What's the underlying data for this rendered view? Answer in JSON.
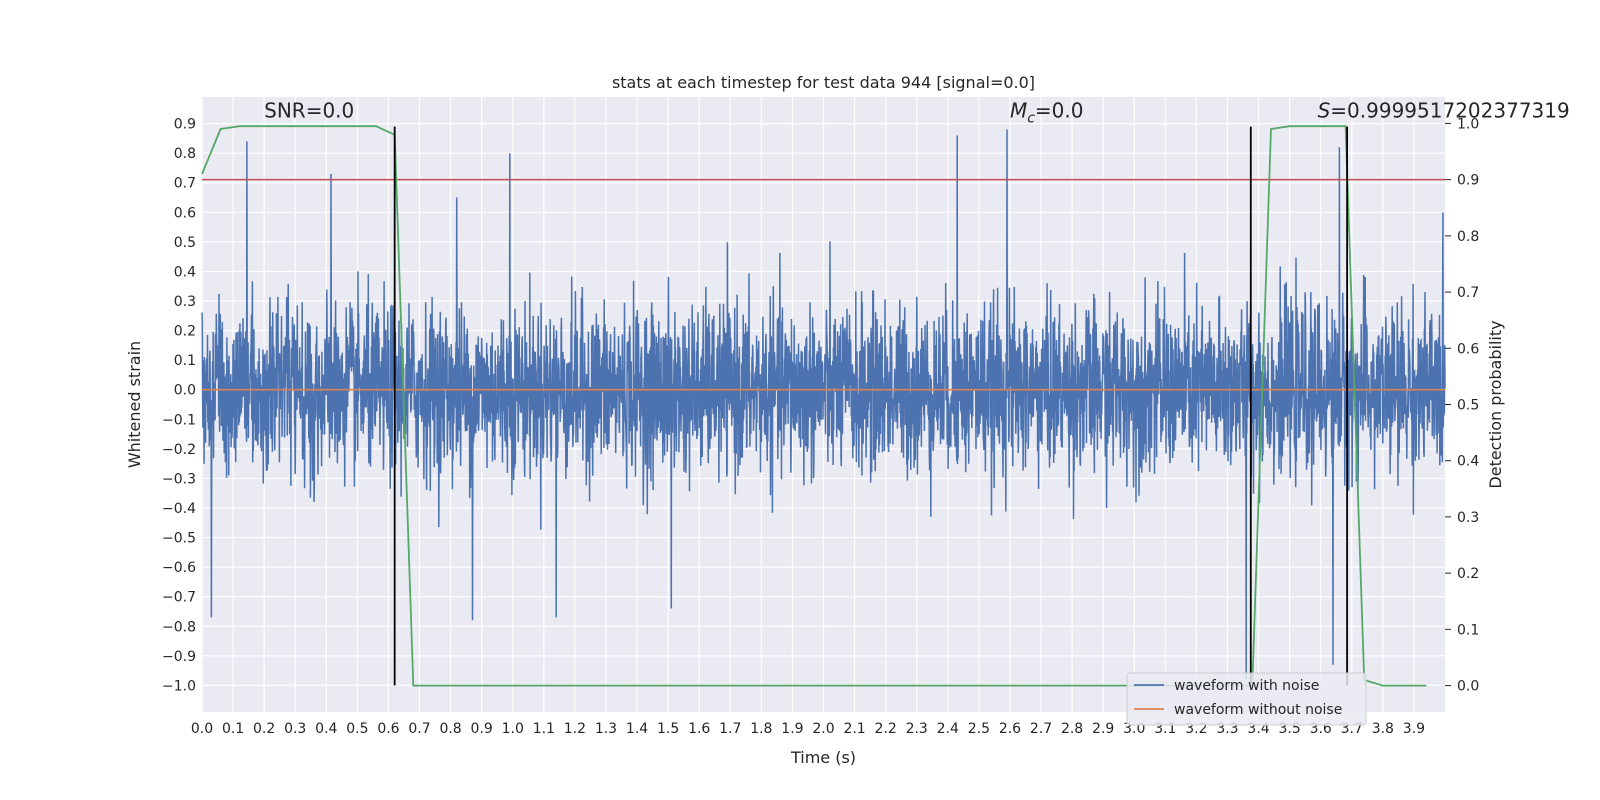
{
  "chart_data": {
    "type": "line",
    "title": "stats at each timestep for test data 944 [signal=0.0]",
    "xlabel": "Time (s)",
    "ylabel_left": "Whitened strain",
    "ylabel_right": "Detection probability",
    "xlim": [
      0.0,
      4.0
    ],
    "ylim_left": [
      -1.09,
      0.99
    ],
    "ylim_right": [
      -0.047,
      1.047
    ],
    "x_ticks": [
      0.0,
      0.1,
      0.2,
      0.3,
      0.4,
      0.5,
      0.6,
      0.7,
      0.8,
      0.9,
      1.0,
      1.1,
      1.2,
      1.3,
      1.4,
      1.5,
      1.6,
      1.7,
      1.8,
      1.9,
      2.0,
      2.1,
      2.2,
      2.3,
      2.4,
      2.5,
      2.6,
      2.7,
      2.8,
      2.9,
      3.0,
      3.1,
      3.2,
      3.3,
      3.4,
      3.5,
      3.6,
      3.7,
      3.8,
      3.9
    ],
    "x_tick_labels": [
      "0.0",
      "0.1",
      "0.2",
      "0.3",
      "0.4",
      "0.5",
      "0.6",
      "0.7",
      "0.8",
      "0.9",
      "1.0",
      "1.1",
      "1.2",
      "1.3",
      "1.4",
      "1.5",
      "1.6",
      "1.7",
      "1.8",
      "1.9",
      "2.0",
      "2.1",
      "2.2",
      "2.3",
      "2.4",
      "2.5",
      "2.6",
      "2.7",
      "2.8",
      "2.9",
      "3.0",
      "3.1",
      "3.2",
      "3.3",
      "3.4",
      "3.5",
      "3.6",
      "3.7",
      "3.8",
      "3.9"
    ],
    "y_ticks_left": [
      0.9,
      0.8,
      0.7,
      0.6,
      0.5,
      0.4,
      0.3,
      0.2,
      0.1,
      0.0,
      -0.1,
      -0.2,
      -0.3,
      -0.4,
      -0.5,
      -0.6,
      -0.7,
      -0.8,
      -0.9,
      -1.0
    ],
    "y_tick_labels_left": [
      "0.9",
      "0.8",
      "0.7",
      "0.6",
      "0.5",
      "0.4",
      "0.3",
      "0.2",
      "0.1",
      "0.0",
      "−0.1",
      "−0.2",
      "−0.3",
      "−0.4",
      "−0.5",
      "−0.6",
      "−0.7",
      "−0.8",
      "−0.9",
      "−1.0"
    ],
    "y_ticks_right": [
      1.0,
      0.9,
      0.8,
      0.7,
      0.6,
      0.5,
      0.4,
      0.3,
      0.2,
      0.1,
      0.0
    ],
    "y_tick_labels_right": [
      "1.0",
      "0.9",
      "0.8",
      "0.7",
      "0.6",
      "0.5",
      "0.4",
      "0.3",
      "0.2",
      "0.1",
      "0.0"
    ],
    "grid": true,
    "legend_position": "bottom-right",
    "series": [
      {
        "name": "waveform with noise",
        "axis": "left",
        "color": "#4c72b0",
        "noise_std": 0.14,
        "peaks": [
          {
            "x": 0.03,
            "y": -0.77
          },
          {
            "x": 0.145,
            "y": 0.84
          },
          {
            "x": 0.415,
            "y": 0.73
          },
          {
            "x": 0.82,
            "y": 0.65
          },
          {
            "x": 0.87,
            "y": -0.78
          },
          {
            "x": 0.99,
            "y": 0.8
          },
          {
            "x": 1.14,
            "y": -0.77
          },
          {
            "x": 1.51,
            "y": -0.74
          },
          {
            "x": 2.43,
            "y": 0.86
          },
          {
            "x": 2.59,
            "y": 0.88
          },
          {
            "x": 3.36,
            "y": -0.98
          },
          {
            "x": 3.64,
            "y": -0.93
          },
          {
            "x": 3.66,
            "y": 0.82
          }
        ]
      },
      {
        "name": "waveform without noise",
        "axis": "left",
        "color": "#dd8452",
        "x": [
          0.0,
          4.0
        ],
        "y": [
          0.0,
          0.0
        ]
      },
      {
        "name": "detection probability",
        "axis": "right",
        "color": "#55a868",
        "x": [
          0.0,
          0.06,
          0.12,
          0.18,
          0.56,
          0.62,
          0.68,
          3.38,
          3.44,
          3.5,
          3.56,
          3.62,
          3.68,
          3.74,
          3.8,
          3.86,
          3.94
        ],
        "y": [
          0.91,
          0.99,
          0.995,
          0.995,
          0.995,
          0.98,
          0.0,
          0.0,
          0.99,
          0.995,
          0.995,
          0.995,
          0.995,
          0.01,
          0.0,
          0.0,
          0.0
        ]
      }
    ],
    "threshold_line": {
      "axis": "right",
      "value": 0.9,
      "color": "#c44e52"
    },
    "vertical_markers": [
      0.62,
      3.375,
      3.685
    ],
    "vertical_marker_range": [
      -1.0,
      0.89
    ],
    "annotations": [
      {
        "text": "SNR=0.0",
        "x": 0.2,
        "y": 0.92
      },
      {
        "symbol": "M",
        "subscript": "c",
        "rest": "=0.0",
        "x": 2.6,
        "y": 0.92
      },
      {
        "symbol": "S",
        "rest": "=0.9999517202377319",
        "x": 3.59,
        "y": 0.92
      }
    ]
  }
}
